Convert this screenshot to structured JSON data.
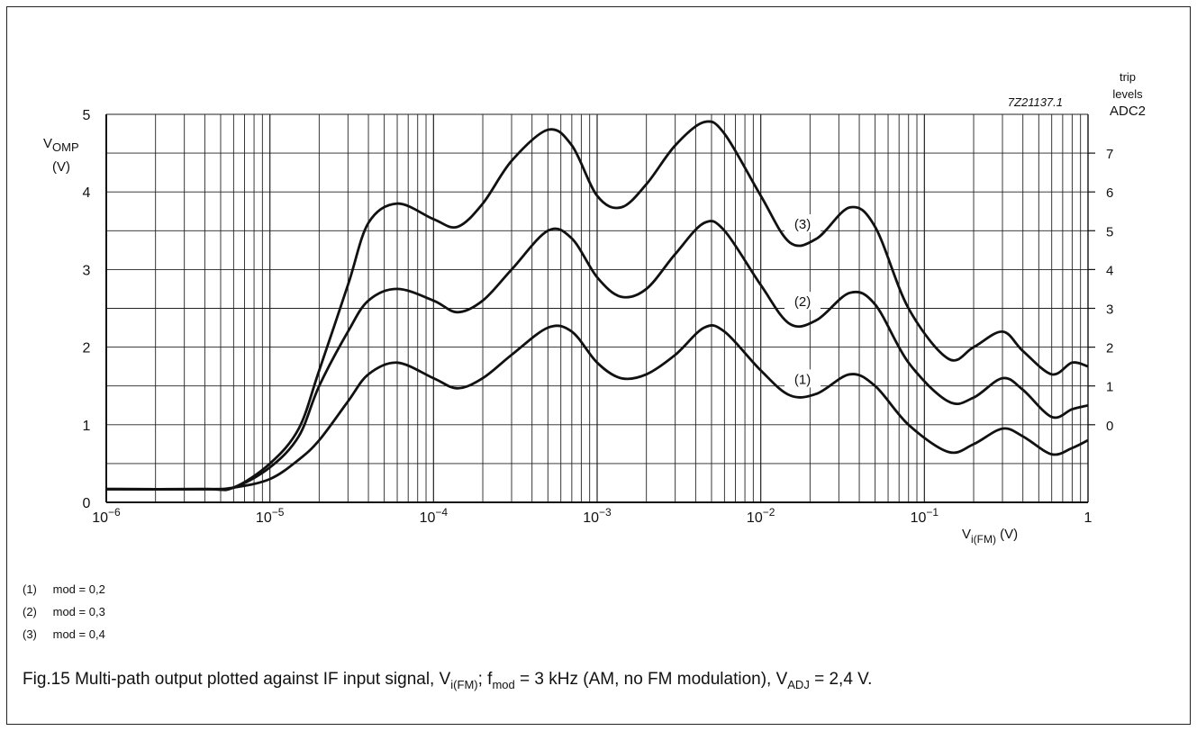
{
  "chart_data": {
    "type": "line",
    "x_scale": "log",
    "xlim": [
      1e-06,
      1
    ],
    "ylim": [
      0,
      5
    ],
    "grid": true,
    "figure_code": "7Z21137.1",
    "ylabel": {
      "main": "V",
      "sub": "OMP",
      "unit": "(V)"
    },
    "xlabel": {
      "main": "V",
      "sub": "i(FM)",
      "unit": "(V)"
    },
    "x_ticks": [
      {
        "base": "10",
        "exp": "−6"
      },
      {
        "base": "10",
        "exp": "−5"
      },
      {
        "base": "10",
        "exp": "−4"
      },
      {
        "base": "10",
        "exp": "−3"
      },
      {
        "base": "10",
        "exp": "−2"
      },
      {
        "base": "10",
        "exp": "−1"
      },
      {
        "base": "1",
        "exp": ""
      }
    ],
    "y_ticks": [
      "0",
      "1",
      "2",
      "3",
      "4",
      "5"
    ],
    "right_axis": {
      "title_lines": [
        "trip",
        "levels",
        "ADC2"
      ],
      "levels": [
        {
          "label": "0",
          "y": 1.0
        },
        {
          "label": "1",
          "y": 1.5
        },
        {
          "label": "2",
          "y": 2.0
        },
        {
          "label": "3",
          "y": 2.5
        },
        {
          "label": "4",
          "y": 3.0
        },
        {
          "label": "5",
          "y": 3.5
        },
        {
          "label": "6",
          "y": 4.0
        },
        {
          "label": "7",
          "y": 4.5
        }
      ]
    },
    "series": [
      {
        "name": "(1)",
        "label_at": {
          "x": 0.018,
          "y": 1.55
        },
        "points": [
          [
            1e-06,
            0.17
          ],
          [
            4e-06,
            0.17
          ],
          [
            6e-06,
            0.19
          ],
          [
            1e-05,
            0.3
          ],
          [
            1.5e-05,
            0.55
          ],
          [
            2e-05,
            0.8
          ],
          [
            3e-05,
            1.3
          ],
          [
            4e-05,
            1.65
          ],
          [
            6e-05,
            1.8
          ],
          [
            0.0001,
            1.6
          ],
          [
            0.00014,
            1.47
          ],
          [
            0.0002,
            1.6
          ],
          [
            0.0003,
            1.9
          ],
          [
            0.0005,
            2.25
          ],
          [
            0.0007,
            2.2
          ],
          [
            0.001,
            1.8
          ],
          [
            0.0014,
            1.6
          ],
          [
            0.002,
            1.65
          ],
          [
            0.003,
            1.9
          ],
          [
            0.0045,
            2.25
          ],
          [
            0.006,
            2.2
          ],
          [
            0.01,
            1.7
          ],
          [
            0.015,
            1.38
          ],
          [
            0.022,
            1.4
          ],
          [
            0.035,
            1.65
          ],
          [
            0.05,
            1.5
          ],
          [
            0.08,
            1.0
          ],
          [
            0.14,
            0.65
          ],
          [
            0.2,
            0.75
          ],
          [
            0.3,
            0.95
          ],
          [
            0.4,
            0.85
          ],
          [
            0.6,
            0.62
          ],
          [
            0.8,
            0.7
          ],
          [
            1.0,
            0.8
          ]
        ]
      },
      {
        "name": "(2)",
        "label_at": {
          "x": 0.018,
          "y": 2.55
        },
        "points": [
          [
            1e-06,
            0.17
          ],
          [
            4e-06,
            0.17
          ],
          [
            6e-06,
            0.19
          ],
          [
            1e-05,
            0.45
          ],
          [
            1.5e-05,
            0.85
          ],
          [
            2e-05,
            1.5
          ],
          [
            3e-05,
            2.2
          ],
          [
            4e-05,
            2.6
          ],
          [
            6e-05,
            2.75
          ],
          [
            0.0001,
            2.6
          ],
          [
            0.00014,
            2.45
          ],
          [
            0.0002,
            2.6
          ],
          [
            0.0003,
            3.0
          ],
          [
            0.0005,
            3.5
          ],
          [
            0.0007,
            3.4
          ],
          [
            0.001,
            2.9
          ],
          [
            0.0014,
            2.65
          ],
          [
            0.002,
            2.75
          ],
          [
            0.003,
            3.2
          ],
          [
            0.0045,
            3.6
          ],
          [
            0.006,
            3.5
          ],
          [
            0.01,
            2.8
          ],
          [
            0.015,
            2.3
          ],
          [
            0.022,
            2.35
          ],
          [
            0.035,
            2.7
          ],
          [
            0.05,
            2.55
          ],
          [
            0.08,
            1.8
          ],
          [
            0.14,
            1.3
          ],
          [
            0.2,
            1.35
          ],
          [
            0.3,
            1.6
          ],
          [
            0.4,
            1.45
          ],
          [
            0.6,
            1.1
          ],
          [
            0.8,
            1.2
          ],
          [
            1.0,
            1.25
          ]
        ]
      },
      {
        "name": "(3)",
        "label_at": {
          "x": 0.018,
          "y": 3.55
        },
        "points": [
          [
            1e-06,
            0.17
          ],
          [
            4e-06,
            0.17
          ],
          [
            6e-06,
            0.19
          ],
          [
            1e-05,
            0.5
          ],
          [
            1.5e-05,
            0.95
          ],
          [
            2e-05,
            1.7
          ],
          [
            3e-05,
            2.8
          ],
          [
            4e-05,
            3.6
          ],
          [
            6e-05,
            3.85
          ],
          [
            0.0001,
            3.65
          ],
          [
            0.00014,
            3.55
          ],
          [
            0.0002,
            3.85
          ],
          [
            0.0003,
            4.4
          ],
          [
            0.0005,
            4.8
          ],
          [
            0.0007,
            4.6
          ],
          [
            0.001,
            3.95
          ],
          [
            0.0014,
            3.8
          ],
          [
            0.002,
            4.1
          ],
          [
            0.003,
            4.6
          ],
          [
            0.0045,
            4.9
          ],
          [
            0.006,
            4.75
          ],
          [
            0.01,
            3.95
          ],
          [
            0.015,
            3.35
          ],
          [
            0.022,
            3.4
          ],
          [
            0.035,
            3.8
          ],
          [
            0.05,
            3.55
          ],
          [
            0.08,
            2.5
          ],
          [
            0.14,
            1.85
          ],
          [
            0.2,
            2.0
          ],
          [
            0.3,
            2.2
          ],
          [
            0.4,
            1.95
          ],
          [
            0.6,
            1.65
          ],
          [
            0.8,
            1.8
          ],
          [
            1.0,
            1.75
          ]
        ]
      }
    ]
  },
  "legend": [
    {
      "num": "(1)",
      "text": "mod = 0,2"
    },
    {
      "num": "(2)",
      "text": "mod = 0,3"
    },
    {
      "num": "(3)",
      "text": "mod = 0,4"
    }
  ],
  "caption": {
    "p1": "Fig.15  Multi-path output plotted against IF input signal, V",
    "s1": "i(FM)",
    "p2": "; f",
    "s2": "mod",
    "p3": " = 3 kHz (AM, no FM modulation), V",
    "s3": "ADJ",
    "p4": " = 2,4 V."
  }
}
